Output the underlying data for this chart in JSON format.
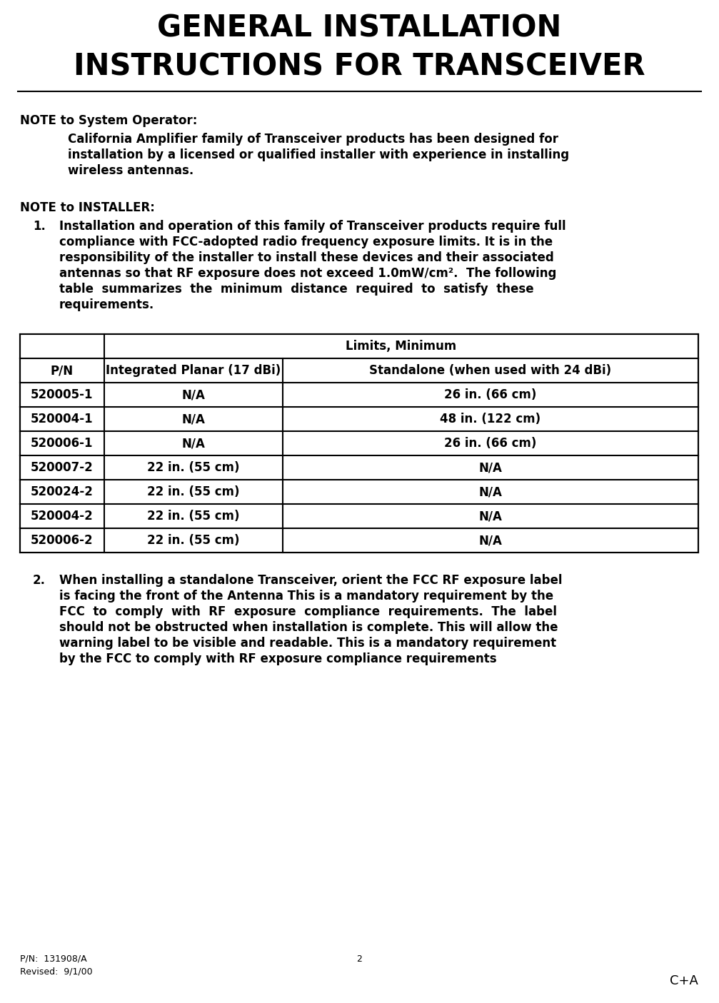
{
  "title_line1": "GENERAL INSTALLATION",
  "title_line2": "INSTRUCTIONS FOR TRANSCEIVER",
  "bg_color": "#ffffff",
  "text_color": "#000000",
  "note_operator_label": "NOTE to System Operator:",
  "note_operator_lines": [
    "California Amplifier family of Transceiver products has been designed for",
    "installation by a licensed or qualified installer with experience in installing",
    "wireless antennas."
  ],
  "note_installer_label": "NOTE to INSTALLER:",
  "note1_prefix": "1.",
  "note1_lines": [
    "Installation and operation of this family of Transceiver products require full",
    "compliance with FCC-adopted radio frequency exposure limits. It is in the",
    "responsibility of the installer to install these devices and their associated",
    "antennas so that RF exposure does not exceed 1.0mW/cm².  The following",
    "table  summarizes  the  minimum  distance  required  to  satisfy  these",
    "requirements."
  ],
  "table_header_top": "Limits, Minimum",
  "table_header_col1": "P/N",
  "table_header_col2": "Integrated Planar (17 dBi)",
  "table_header_col3": "Standalone (when used with 24 dBi)",
  "table_rows": [
    [
      "520005-1",
      "N/A",
      "26 in. (66 cm)"
    ],
    [
      "520004-1",
      "N/A",
      "48 in. (122 cm)"
    ],
    [
      "520006-1",
      "N/A",
      "26 in. (66 cm)"
    ],
    [
      "520007-2",
      "22 in. (55 cm)",
      "N/A"
    ],
    [
      "520024-2",
      "22 in. (55 cm)",
      "N/A"
    ],
    [
      "520004-2",
      "22 in. (55 cm)",
      "N/A"
    ],
    [
      "520006-2",
      "22 in. (55 cm)",
      "N/A"
    ]
  ],
  "note2_prefix": "2.",
  "note2_lines": [
    "When installing a standalone Transceiver, orient the FCC RF exposure label",
    "is facing the front of the Antenna This is a mandatory requirement by the",
    "FCC  to  comply  with  RF  exposure  compliance  requirements.  The  label",
    "should not be obstructed when installation is complete. This will allow the",
    "warning label to be visible and readable. This is a mandatory requirement",
    "by the FCC to comply with RF exposure compliance requirements"
  ],
  "footer_left_line1": "P/N:  131908/A",
  "footer_left_line2": "Revised:  9/1/00",
  "footer_center": "2",
  "footer_right": "C+A"
}
